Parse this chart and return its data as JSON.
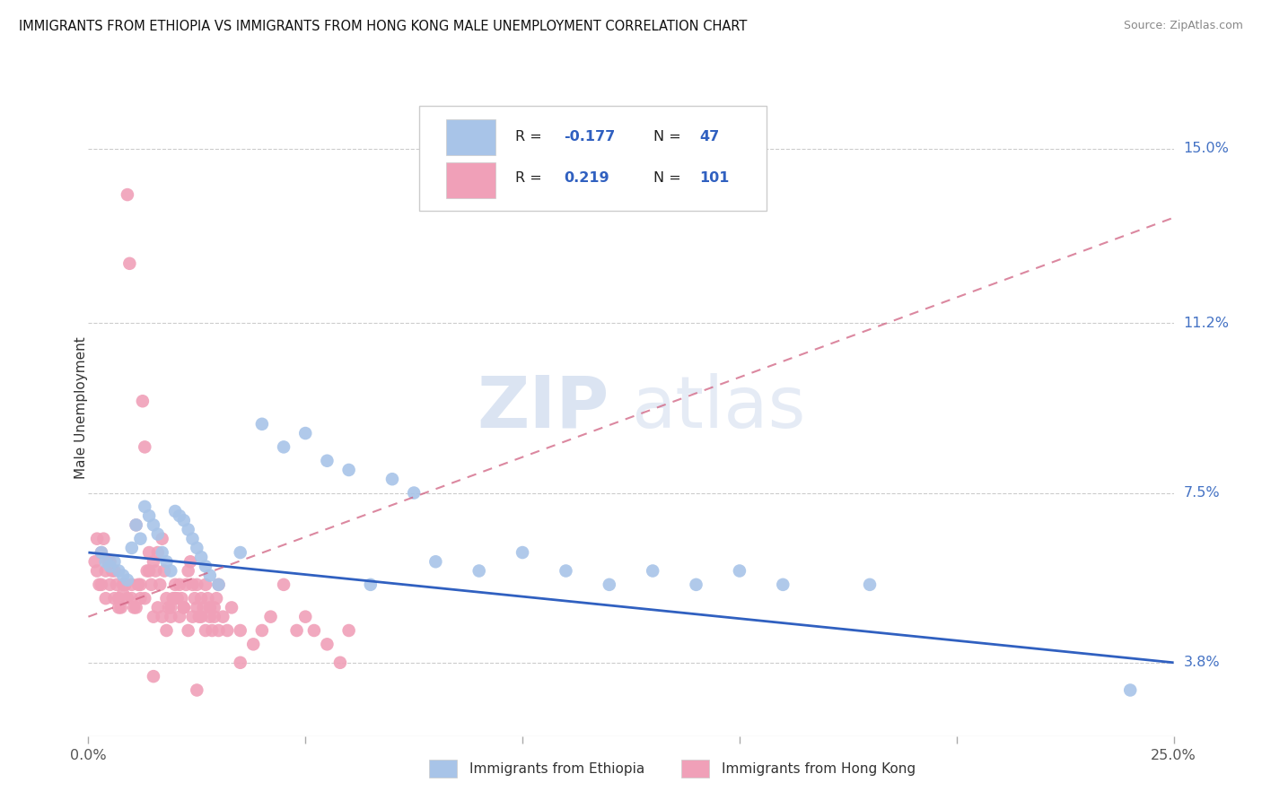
{
  "title": "IMMIGRANTS FROM ETHIOPIA VS IMMIGRANTS FROM HONG KONG MALE UNEMPLOYMENT CORRELATION CHART",
  "source": "Source: ZipAtlas.com",
  "ylabel": "Male Unemployment",
  "ytick_labels": [
    "3.8%",
    "7.5%",
    "11.2%",
    "15.0%"
  ],
  "ytick_values": [
    3.8,
    7.5,
    11.2,
    15.0
  ],
  "xlim": [
    0.0,
    25.0
  ],
  "ylim": [
    2.2,
    16.5
  ],
  "legend_label1": "Immigrants from Ethiopia",
  "legend_label2": "Immigrants from Hong Kong",
  "color_ethiopia": "#a8c4e8",
  "color_hongkong": "#f0a0b8",
  "color_ethiopia_line": "#3060c0",
  "color_hongkong_line": "#d06080",
  "color_axis_right": "#4472c4",
  "watermark_zip": "ZIP",
  "watermark_atlas": "atlas",
  "ethiopia_scatter": [
    [
      0.3,
      6.2
    ],
    [
      0.4,
      6.0
    ],
    [
      0.5,
      5.9
    ],
    [
      0.6,
      6.0
    ],
    [
      0.7,
      5.8
    ],
    [
      0.8,
      5.7
    ],
    [
      0.9,
      5.6
    ],
    [
      1.0,
      6.3
    ],
    [
      1.1,
      6.8
    ],
    [
      1.2,
      6.5
    ],
    [
      1.3,
      7.2
    ],
    [
      1.4,
      7.0
    ],
    [
      1.5,
      6.8
    ],
    [
      1.6,
      6.6
    ],
    [
      1.7,
      6.2
    ],
    [
      1.8,
      6.0
    ],
    [
      1.9,
      5.8
    ],
    [
      2.0,
      7.1
    ],
    [
      2.1,
      7.0
    ],
    [
      2.2,
      6.9
    ],
    [
      2.3,
      6.7
    ],
    [
      2.4,
      6.5
    ],
    [
      2.5,
      6.3
    ],
    [
      2.6,
      6.1
    ],
    [
      2.7,
      5.9
    ],
    [
      2.8,
      5.7
    ],
    [
      3.0,
      5.5
    ],
    [
      3.5,
      6.2
    ],
    [
      4.0,
      9.0
    ],
    [
      4.5,
      8.5
    ],
    [
      5.0,
      8.8
    ],
    [
      5.5,
      8.2
    ],
    [
      6.0,
      8.0
    ],
    [
      6.5,
      5.5
    ],
    [
      7.0,
      7.8
    ],
    [
      7.5,
      7.5
    ],
    [
      8.0,
      6.0
    ],
    [
      9.0,
      5.8
    ],
    [
      10.0,
      6.2
    ],
    [
      11.0,
      5.8
    ],
    [
      12.0,
      5.5
    ],
    [
      13.0,
      5.8
    ],
    [
      14.0,
      5.5
    ],
    [
      15.0,
      5.8
    ],
    [
      16.0,
      5.5
    ],
    [
      18.0,
      5.5
    ],
    [
      24.0,
      3.2
    ]
  ],
  "hongkong_scatter": [
    [
      0.15,
      6.0
    ],
    [
      0.2,
      5.8
    ],
    [
      0.25,
      5.5
    ],
    [
      0.3,
      6.2
    ],
    [
      0.35,
      6.5
    ],
    [
      0.4,
      5.8
    ],
    [
      0.45,
      6.0
    ],
    [
      0.5,
      5.5
    ],
    [
      0.55,
      5.8
    ],
    [
      0.6,
      5.2
    ],
    [
      0.65,
      5.5
    ],
    [
      0.7,
      5.2
    ],
    [
      0.75,
      5.0
    ],
    [
      0.8,
      5.3
    ],
    [
      0.85,
      5.5
    ],
    [
      0.9,
      14.0
    ],
    [
      0.95,
      12.5
    ],
    [
      1.0,
      5.2
    ],
    [
      1.05,
      5.0
    ],
    [
      1.1,
      6.8
    ],
    [
      1.15,
      5.5
    ],
    [
      1.2,
      5.2
    ],
    [
      1.25,
      9.5
    ],
    [
      1.3,
      8.5
    ],
    [
      1.35,
      5.8
    ],
    [
      1.4,
      6.2
    ],
    [
      1.45,
      5.5
    ],
    [
      1.5,
      6.0
    ],
    [
      1.55,
      5.8
    ],
    [
      1.6,
      6.2
    ],
    [
      1.65,
      5.5
    ],
    [
      1.7,
      6.5
    ],
    [
      1.75,
      5.8
    ],
    [
      1.8,
      5.2
    ],
    [
      1.85,
      5.0
    ],
    [
      1.9,
      4.8
    ],
    [
      1.95,
      5.2
    ],
    [
      2.0,
      5.5
    ],
    [
      2.05,
      5.2
    ],
    [
      2.1,
      5.5
    ],
    [
      2.15,
      5.2
    ],
    [
      2.2,
      5.0
    ],
    [
      2.25,
      5.5
    ],
    [
      2.3,
      5.8
    ],
    [
      2.35,
      6.0
    ],
    [
      2.4,
      5.5
    ],
    [
      2.45,
      5.2
    ],
    [
      2.5,
      5.0
    ],
    [
      2.55,
      4.8
    ],
    [
      2.6,
      5.2
    ],
    [
      2.65,
      5.0
    ],
    [
      2.7,
      5.5
    ],
    [
      2.75,
      5.2
    ],
    [
      2.8,
      4.8
    ],
    [
      2.85,
      4.5
    ],
    [
      2.9,
      5.0
    ],
    [
      2.95,
      5.2
    ],
    [
      3.0,
      5.5
    ],
    [
      3.1,
      4.8
    ],
    [
      3.2,
      4.5
    ],
    [
      3.3,
      5.0
    ],
    [
      3.5,
      4.5
    ],
    [
      3.8,
      4.2
    ],
    [
      4.0,
      4.5
    ],
    [
      4.2,
      4.8
    ],
    [
      4.5,
      5.5
    ],
    [
      4.8,
      4.5
    ],
    [
      5.0,
      4.8
    ],
    [
      5.2,
      4.5
    ],
    [
      5.5,
      4.2
    ],
    [
      5.8,
      3.8
    ],
    [
      6.0,
      4.5
    ],
    [
      0.2,
      6.5
    ],
    [
      0.3,
      5.5
    ],
    [
      0.4,
      5.2
    ],
    [
      0.5,
      6.0
    ],
    [
      0.6,
      5.8
    ],
    [
      0.7,
      5.0
    ],
    [
      0.8,
      5.5
    ],
    [
      0.9,
      5.2
    ],
    [
      1.0,
      5.5
    ],
    [
      1.1,
      5.0
    ],
    [
      1.2,
      5.5
    ],
    [
      1.3,
      5.2
    ],
    [
      1.4,
      5.8
    ],
    [
      1.5,
      4.8
    ],
    [
      1.6,
      5.0
    ],
    [
      1.7,
      4.8
    ],
    [
      1.8,
      4.5
    ],
    [
      1.9,
      5.0
    ],
    [
      2.0,
      5.2
    ],
    [
      2.1,
      4.8
    ],
    [
      2.2,
      5.0
    ],
    [
      2.3,
      4.5
    ],
    [
      2.4,
      4.8
    ],
    [
      2.5,
      5.5
    ],
    [
      2.6,
      4.8
    ],
    [
      2.7,
      4.5
    ],
    [
      2.8,
      5.0
    ],
    [
      2.9,
      4.8
    ],
    [
      3.0,
      4.5
    ],
    [
      3.5,
      3.8
    ],
    [
      1.5,
      3.5
    ],
    [
      2.5,
      3.2
    ]
  ],
  "eth_trend": [
    6.2,
    3.8
  ],
  "hk_trend_start": 4.8,
  "hk_trend_end": 13.5
}
